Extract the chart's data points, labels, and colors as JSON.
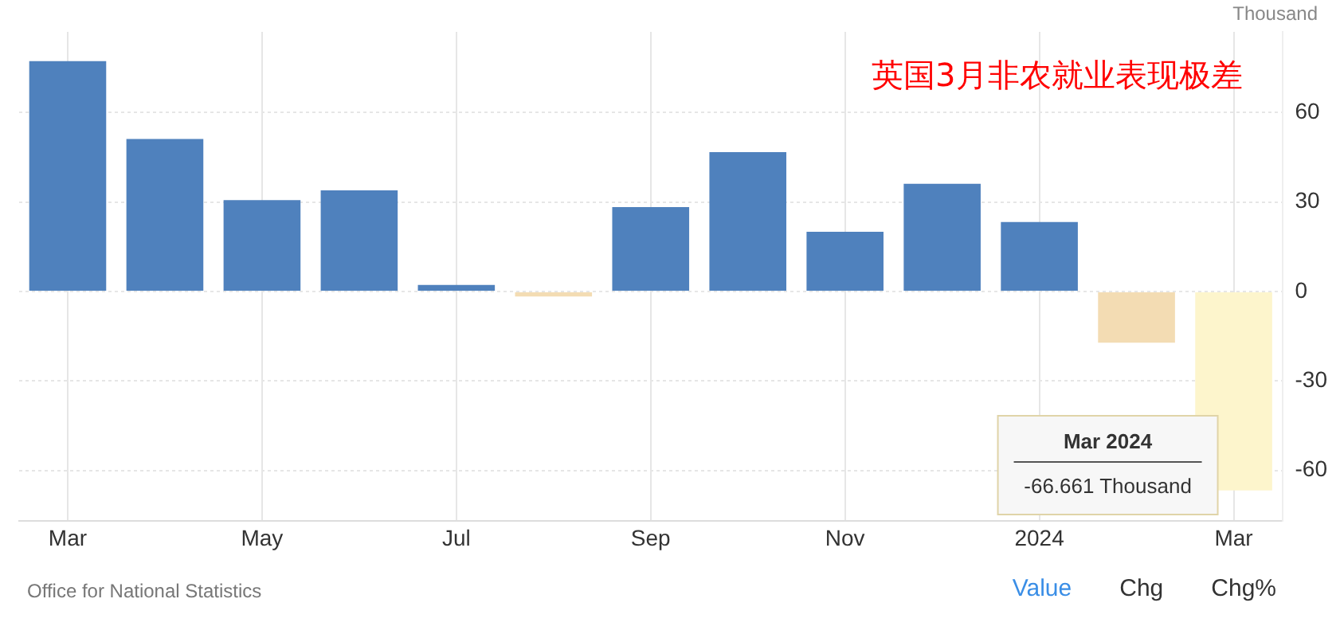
{
  "chart_data": {
    "type": "bar",
    "title": "英国3月非农就业表现极差",
    "ylabel": "Thousand",
    "categories": [
      "Mar",
      null,
      "May",
      null,
      "Jul",
      null,
      "Sep",
      null,
      "Nov",
      null,
      "2024",
      null,
      "Mar"
    ],
    "values": [
      77.2,
      51.1,
      30.6,
      33.9,
      2.2,
      -1.7,
      28.3,
      46.7,
      20,
      36.1,
      23.3,
      -17.2,
      -66.661
    ],
    "colors": [
      "#4f81bd",
      "#4f81bd",
      "#4f81bd",
      "#4f81bd",
      "#4f81bd",
      "#f3dcb3",
      "#4f81bd",
      "#4f81bd",
      "#4f81bd",
      "#4f81bd",
      "#4f81bd",
      "#f3dcb3",
      "#fdf5cc"
    ],
    "ylim": [
      -77,
      87
    ],
    "yticks": [
      -60,
      -30,
      0,
      30,
      60
    ],
    "grid": true,
    "legend": false,
    "annotations": [
      "Mar 2024",
      "-66.661 Thousand",
      "Office for National Statistics",
      "Value",
      "Chg",
      "Chg%"
    ]
  }
}
